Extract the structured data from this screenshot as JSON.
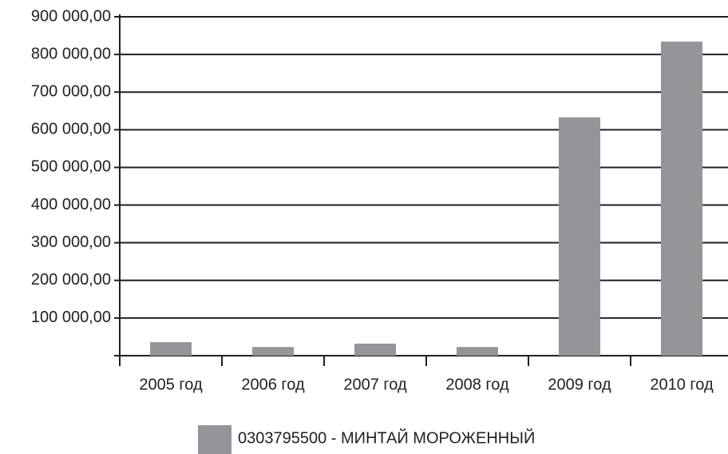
{
  "chart_data": {
    "type": "bar",
    "categories": [
      "2005 год",
      "2006 год",
      "2007 год",
      "2008 год",
      "2009 год",
      "2010 год"
    ],
    "series": [
      {
        "name": "0303795500 -  МИНТАЙ МОРОЖЕННЫЙ",
        "color": "#939598",
        "values": [
          36000,
          23000,
          32000,
          23000,
          633000,
          834000
        ]
      }
    ],
    "ylim": [
      0,
      900000
    ],
    "yticks": [
      {
        "value": 100000,
        "label": "100 000,00"
      },
      {
        "value": 200000,
        "label": "200 000,00"
      },
      {
        "value": 300000,
        "label": "300 000,00"
      },
      {
        "value": 400000,
        "label": "400 000,00"
      },
      {
        "value": 500000,
        "label": "500 000,00"
      },
      {
        "value": 600000,
        "label": "600 000,00"
      },
      {
        "value": 700000,
        "label": "700 000,00"
      },
      {
        "value": 800000,
        "label": "800 000,00"
      },
      {
        "value": 900000,
        "label": "900 000,00"
      }
    ],
    "grid": true
  }
}
